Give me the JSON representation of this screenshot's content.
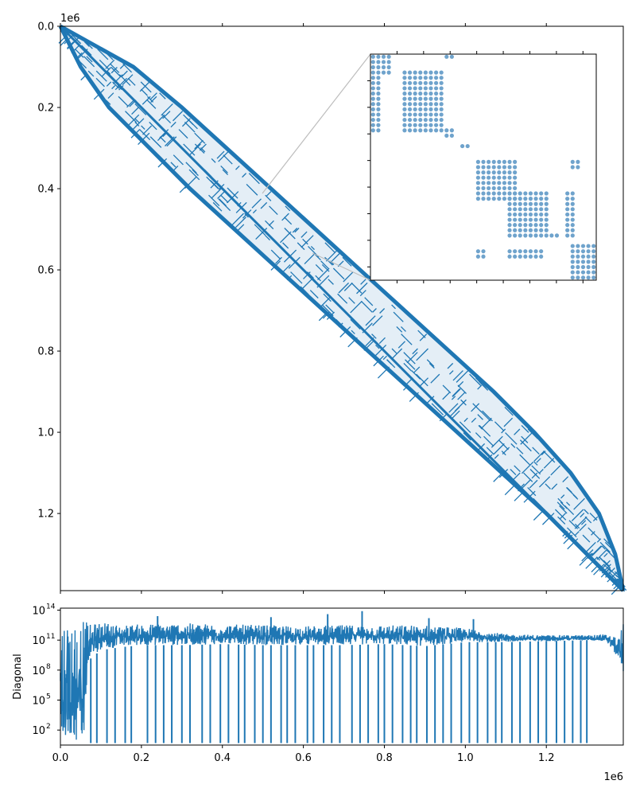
{
  "chart_data": [
    {
      "type": "scatter",
      "subtype": "sparsity-pattern",
      "y_axis_inverted": true,
      "xlim": [
        0,
        1390000
      ],
      "ylim": [
        0,
        1390000
      ],
      "y_ticks": [
        0.0,
        0.2,
        0.4,
        0.6,
        0.8,
        1.0,
        1.2
      ],
      "y_tick_labels": [
        "0.0",
        "0.2",
        "0.4",
        "0.6",
        "0.8",
        "1.0",
        "1.2"
      ],
      "y_offset_label": "1e6",
      "x_ticks": [
        0.0,
        0.2,
        0.4,
        0.6,
        0.8,
        1.0,
        1.2
      ],
      "x_tick_labels_shown": false,
      "color": "#1f77b4",
      "band": {
        "rows": [
          0,
          100000,
          200000,
          300000,
          400000,
          500000,
          600000,
          700000,
          800000,
          900000,
          1000000,
          1100000,
          1200000,
          1300000,
          1390000
        ],
        "col_min": [
          0,
          50000,
          120000,
          220000,
          320000,
          430000,
          540000,
          650000,
          760000,
          870000,
          980000,
          1090000,
          1200000,
          1300000,
          1390000
        ],
        "col_max": [
          0,
          180000,
          300000,
          410000,
          520000,
          630000,
          740000,
          850000,
          960000,
          1070000,
          1170000,
          1260000,
          1330000,
          1370000,
          1390000
        ]
      },
      "inset": {
        "type": "scatter",
        "description": "zoomed sparsity block",
        "zoom_center": [
          490000,
          490000
        ],
        "color": "#6fa3cc",
        "grid_size": 43,
        "blocks": [
          {
            "rows": [
              0,
              4
            ],
            "cols": [
              0,
              4
            ]
          },
          {
            "rows": [
              0,
              1
            ],
            "cols": [
              14,
              16
            ]
          },
          {
            "rows": [
              3,
              15
            ],
            "cols": [
              6,
              14
            ]
          },
          {
            "rows": [
              4,
              15
            ],
            "cols": [
              0,
              2
            ]
          },
          {
            "rows": [
              14,
              16
            ],
            "cols": [
              14,
              16
            ]
          },
          {
            "rows": [
              17,
              18
            ],
            "cols": [
              17,
              19
            ]
          },
          {
            "rows": [
              20,
              28
            ],
            "cols": [
              20,
              28
            ]
          },
          {
            "rows": [
              26,
              35
            ],
            "cols": [
              26,
              34
            ]
          },
          {
            "rows": [
              20,
              22
            ],
            "cols": [
              38,
              40
            ]
          },
          {
            "rows": [
              26,
              35
            ],
            "cols": [
              37,
              39
            ]
          },
          {
            "rows": [
              34,
              35
            ],
            "cols": [
              34,
              36
            ]
          },
          {
            "rows": [
              36,
              43
            ],
            "cols": [
              38,
              43
            ]
          },
          {
            "rows": [
              37,
              39
            ],
            "cols": [
              20,
              22
            ]
          },
          {
            "rows": [
              37,
              39
            ],
            "cols": [
              26,
              33
            ]
          }
        ]
      }
    },
    {
      "type": "line",
      "ylabel": "Diagonal",
      "y_scale": "log",
      "xlim": [
        0,
        1390000
      ],
      "ylim_exp": [
        0.5,
        14.2
      ],
      "x_ticks": [
        0.0,
        0.2,
        0.4,
        0.6,
        0.8,
        1.0,
        1.2
      ],
      "x_tick_labels": [
        "0.0",
        "0.2",
        "0.4",
        "0.6",
        "0.8",
        "1.0",
        "1.2"
      ],
      "x_offset_label": "1e6",
      "y_ticks_exp": [
        2,
        5,
        8,
        11,
        14
      ],
      "y_tick_base": "10",
      "y_tick_exponents": [
        "2",
        "5",
        "8",
        "11",
        "14"
      ],
      "color": "#1f77b4",
      "profile": {
        "x": [
          0,
          10000,
          60000,
          70000,
          100000,
          150000,
          200000,
          300000,
          400000,
          500000,
          600000,
          700000,
          800000,
          900000,
          1000000,
          1100000,
          1200000,
          1300000,
          1350000,
          1380000,
          1390000
        ],
        "upper_log10": [
          13.0,
          13.2,
          13.1,
          12.5,
          12.8,
          12.5,
          12.6,
          12.7,
          12.6,
          12.5,
          12.4,
          12.5,
          12.5,
          12.5,
          12.2,
          11.6,
          11.5,
          11.5,
          11.6,
          11.3,
          13.0
        ],
        "lower_log10": [
          0.7,
          0.7,
          0.7,
          9.0,
          10.0,
          10.3,
          10.5,
          10.5,
          10.6,
          10.5,
          10.5,
          10.5,
          10.6,
          10.4,
          10.8,
          10.8,
          10.9,
          11.0,
          10.8,
          9.0,
          7.5
        ]
      },
      "dips_to_bottom_x": [
        75000,
        90000,
        115000,
        135000,
        160000,
        175000,
        215000,
        235000,
        255000,
        275000,
        300000,
        320000,
        350000,
        370000,
        395000,
        415000,
        440000,
        455000,
        480000,
        500000,
        520000,
        545000,
        560000,
        580000,
        610000,
        625000,
        650000,
        670000,
        690000,
        720000,
        740000,
        760000,
        785000,
        800000,
        820000,
        845000,
        865000,
        880000,
        905000,
        925000,
        945000,
        965000,
        990000,
        1010000,
        1030000,
        1055000,
        1075000,
        1090000,
        1115000,
        1135000,
        1160000,
        1180000,
        1200000,
        1225000,
        1245000,
        1265000,
        1285000,
        1300000
      ],
      "spikes_up": [
        [
          745000,
          13.9
        ],
        [
          660000,
          13.6
        ],
        [
          240000,
          13.4
        ],
        [
          520000,
          13.3
        ],
        [
          910000,
          13.2
        ],
        [
          1020000,
          13.1
        ]
      ]
    }
  ]
}
